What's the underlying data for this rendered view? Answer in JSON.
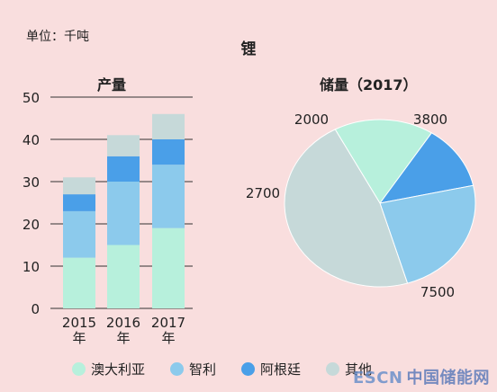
{
  "unit_label": "单位：千吨",
  "title": "锂",
  "chart_data": [
    {
      "type": "bar",
      "stacked": true,
      "title": "产量",
      "categories": [
        "2015\n年",
        "2016\n年",
        "2017\n年"
      ],
      "ylim": [
        0,
        50
      ],
      "yticks": [
        0,
        10,
        20,
        30,
        40,
        50
      ],
      "grid": true,
      "series": [
        {
          "name": "澳大利亚",
          "color": "#b7f0dc",
          "values": [
            12,
            15,
            19
          ]
        },
        {
          "name": "智利",
          "color": "#8ccaec",
          "values": [
            11,
            15,
            15
          ]
        },
        {
          "name": "阿根廷",
          "color": "#4a9fe8",
          "values": [
            4,
            6,
            6
          ]
        },
        {
          "name": "其他",
          "color": "#c6d9d9",
          "values": [
            4,
            5,
            6
          ]
        }
      ]
    },
    {
      "type": "pie",
      "title": "储量（2017）",
      "slices": [
        {
          "name": "澳大利亚",
          "value": 2700,
          "label": "2700",
          "color": "#b7f0dc"
        },
        {
          "name": "阿根廷",
          "value": 2000,
          "label": "2000",
          "color": "#4a9fe8"
        },
        {
          "name": "智利",
          "value": 3800,
          "label": "3800",
          "color": "#8ccaec"
        },
        {
          "name": "其他",
          "value": 7500,
          "label": "7500",
          "color": "#c6d9d9"
        }
      ]
    }
  ],
  "legend": [
    {
      "label": "澳大利亚",
      "color": "#b7f0dc"
    },
    {
      "label": "智利",
      "color": "#8ccaec"
    },
    {
      "label": "阿根廷",
      "color": "#4a9fe8"
    },
    {
      "label": "其他",
      "color": "#c6d9d9"
    }
  ],
  "watermark": {
    "prefix": "ESCN",
    "text": "中国储能网"
  }
}
